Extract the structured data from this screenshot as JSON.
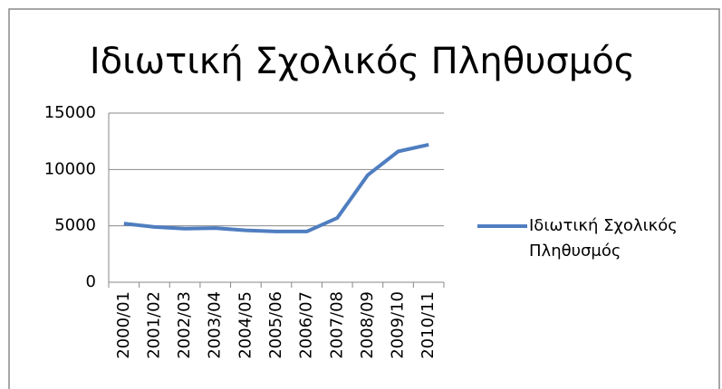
{
  "chart_data": {
    "type": "line",
    "title": "Ιδιωτική Σχολικός Πληθυσμός",
    "categories": [
      "2000/01",
      "2001/02",
      "2002/03",
      "2003/04",
      "2004/05",
      "2005/06",
      "2006/07",
      "2007/08",
      "2008/09",
      "2009/10",
      "2010/11"
    ],
    "series": [
      {
        "name": "Ιδιωτική Σχολικός Πληθυσμός",
        "color": "#4f7ec0",
        "values": [
          5200,
          4900,
          4750,
          4800,
          4600,
          4500,
          4500,
          5700,
          9500,
          11600,
          12200
        ]
      }
    ],
    "ylim": [
      0,
      15000
    ],
    "yticks": [
      0,
      5000,
      10000,
      15000
    ],
    "grid": true,
    "legend": "right"
  }
}
